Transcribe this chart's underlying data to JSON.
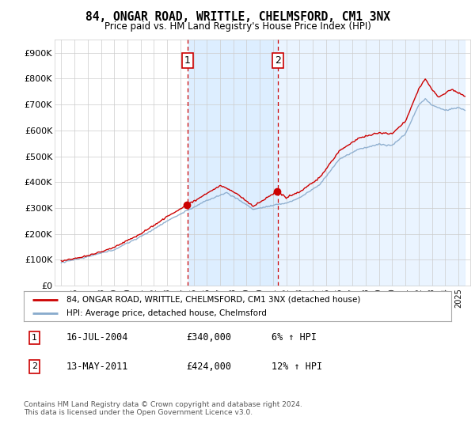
{
  "title": "84, ONGAR ROAD, WRITTLE, CHELMSFORD, CM1 3NX",
  "subtitle": "Price paid vs. HM Land Registry's House Price Index (HPI)",
  "ylim": [
    0,
    950000
  ],
  "purchase1_date": 2004.54,
  "purchase1_price": 340000,
  "purchase2_date": 2011.36,
  "purchase2_price": 424000,
  "legend_line1": "84, ONGAR ROAD, WRITTLE, CHELMSFORD, CM1 3NX (detached house)",
  "legend_line2": "HPI: Average price, detached house, Chelmsford",
  "table_row1": [
    "1",
    "16-JUL-2004",
    "£340,000",
    "6% ↑ HPI"
  ],
  "table_row2": [
    "2",
    "13-MAY-2011",
    "£424,000",
    "12% ↑ HPI"
  ],
  "footer": "Contains HM Land Registry data © Crown copyright and database right 2024.\nThis data is licensed under the Open Government Licence v3.0.",
  "line_color_red": "#cc0000",
  "line_color_blue": "#88aacc",
  "background_color": "#ffffff",
  "grid_color": "#cccccc",
  "highlight_bg": "#ddeeff",
  "dashed_line_color": "#cc0000"
}
